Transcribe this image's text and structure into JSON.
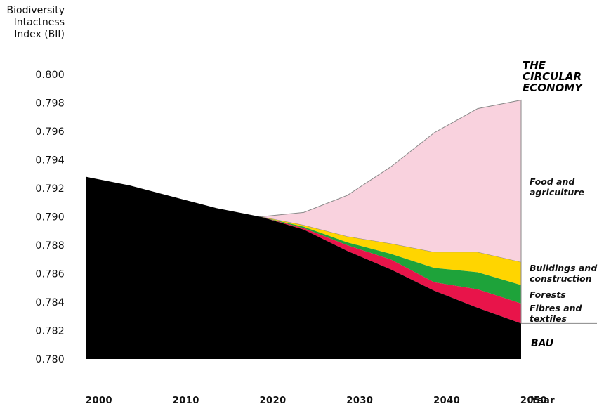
{
  "chart_data": {
    "type": "area",
    "ylabel": [
      "Biodiversity",
      "Intactness",
      "Index (BII)"
    ],
    "xlabel": "Year",
    "title_lines": [
      "THE",
      "CIRCULAR",
      "ECONOMY"
    ],
    "ylim": [
      0.78,
      0.8
    ],
    "xlim": [
      2000,
      2050
    ],
    "x_ticks": [
      "2000",
      "2010",
      "2020",
      "2030",
      "2040",
      "2050"
    ],
    "y_ticks": [
      "0.780",
      "0.782",
      "0.784",
      "0.786",
      "0.788",
      "0.790",
      "0.792",
      "0.794",
      "0.796",
      "0.798",
      "0.800"
    ],
    "bau": {
      "name": "BAU",
      "x": [
        2000,
        2005,
        2010,
        2015,
        2020,
        2025,
        2030,
        2035,
        2040,
        2045,
        2050
      ],
      "y": [
        0.7928,
        0.7922,
        0.7914,
        0.7906,
        0.79,
        0.7891,
        0.7876,
        0.7863,
        0.7848,
        0.7836,
        0.7825
      ]
    },
    "layers": [
      {
        "name": "Fibres and textiles",
        "label_lines": [
          "Fibres and",
          "textiles"
        ],
        "color": "#e8144a",
        "x": [
          2020,
          2025,
          2030,
          2035,
          2040,
          2045,
          2050
        ],
        "top": [
          0.79,
          0.7892,
          0.788,
          0.787,
          0.7854,
          0.7849,
          0.7839
        ]
      },
      {
        "name": "Forests",
        "label_lines": [
          "Forests"
        ],
        "color": "#1ea33a",
        "x": [
          2020,
          2025,
          2030,
          2035,
          2040,
          2045,
          2050
        ],
        "top": [
          0.79,
          0.7893,
          0.7882,
          0.7874,
          0.7864,
          0.7861,
          0.7852
        ]
      },
      {
        "name": "Buildings and construction",
        "label_lines": [
          "Buildings and",
          "construction"
        ],
        "color": "#ffd500",
        "x": [
          2020,
          2025,
          2030,
          2035,
          2040,
          2045,
          2050
        ],
        "top": [
          0.79,
          0.7894,
          0.7886,
          0.7881,
          0.7875,
          0.7875,
          0.7868
        ]
      },
      {
        "name": "Food and agriculture",
        "label_lines": [
          "Food and",
          "agriculture"
        ],
        "color": "#f9d2de",
        "x": [
          2020,
          2025,
          2030,
          2035,
          2040,
          2045,
          2050
        ],
        "top": [
          0.79,
          0.7903,
          0.7915,
          0.7935,
          0.7959,
          0.7976,
          0.7982
        ]
      }
    ]
  }
}
